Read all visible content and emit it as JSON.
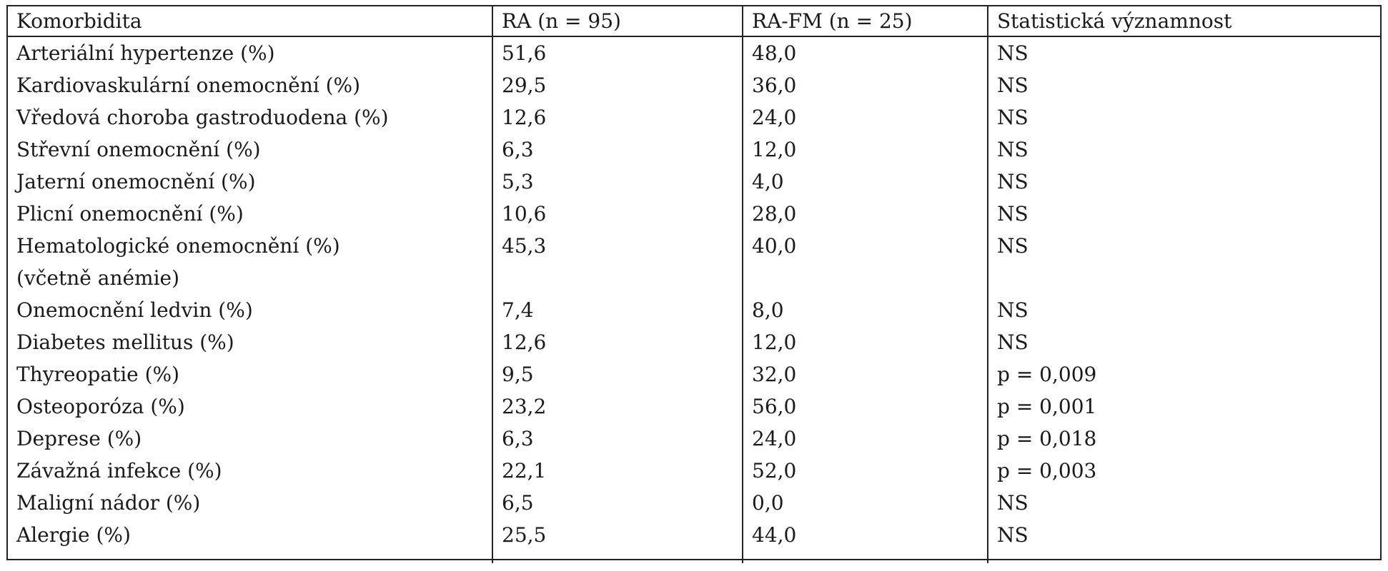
{
  "headers": [
    "Komorbidita",
    "RA (n = 95)",
    "RA-FM (n = 25)",
    "Statistická významnost"
  ],
  "rows": [
    {
      "label": "Arteriální hypertenze (%)",
      "ra": "51,6",
      "rafm": "48,0",
      "sig": "NS"
    },
    {
      "label": "Kardiovaskulární onemocnění (%)",
      "ra": "29,5",
      "rafm": "36,0",
      "sig": "NS"
    },
    {
      "label": "Vředová choroba gastroduodena (%)",
      "ra": "12,6",
      "rafm": "24,0",
      "sig": "NS"
    },
    {
      "label": "Střevní onemocnění (%)",
      "ra": "6,3",
      "rafm": "12,0",
      "sig": "NS"
    },
    {
      "label": "Jaterní onemocnění (%)",
      "ra": "5,3",
      "rafm": "4,0",
      "sig": "NS"
    },
    {
      "label": "Plicní onemocnění (%)",
      "ra": "10,6",
      "rafm": "28,0",
      "sig": "NS"
    },
    {
      "label": "Hematologické onemocnění (%)",
      "label2": "(včetně anémie)",
      "ra": "45,3",
      "rafm": "40,0",
      "sig": "NS"
    },
    {
      "label": "Onemocnění ledvin (%)",
      "ra": "7,4",
      "rafm": "8,0",
      "sig": "NS"
    },
    {
      "label": "Diabetes mellitus (%)",
      "ra": "12,6",
      "rafm": "12,0",
      "sig": "NS"
    },
    {
      "label": "Thyreopatie (%)",
      "ra": "9,5",
      "rafm": "32,0",
      "sig": "p = 0,009"
    },
    {
      "label": "Osteoporóza (%)",
      "ra": "23,2",
      "rafm": "56,0",
      "sig": "p = 0,001"
    },
    {
      "label": "Deprese (%)",
      "ra": "6,3",
      "rafm": "24,0",
      "sig": "p = 0,018"
    },
    {
      "label": "Závažná infekce (%)",
      "ra": "22,1",
      "rafm": "52,0",
      "sig": "p = 0,003"
    },
    {
      "label": "Maligní nádor (%)",
      "ra": "6,5",
      "rafm": "0,0",
      "sig": "NS"
    },
    {
      "label": "Alergie (%)",
      "ra": "25,5",
      "rafm": "44,0",
      "sig": "NS"
    }
  ]
}
